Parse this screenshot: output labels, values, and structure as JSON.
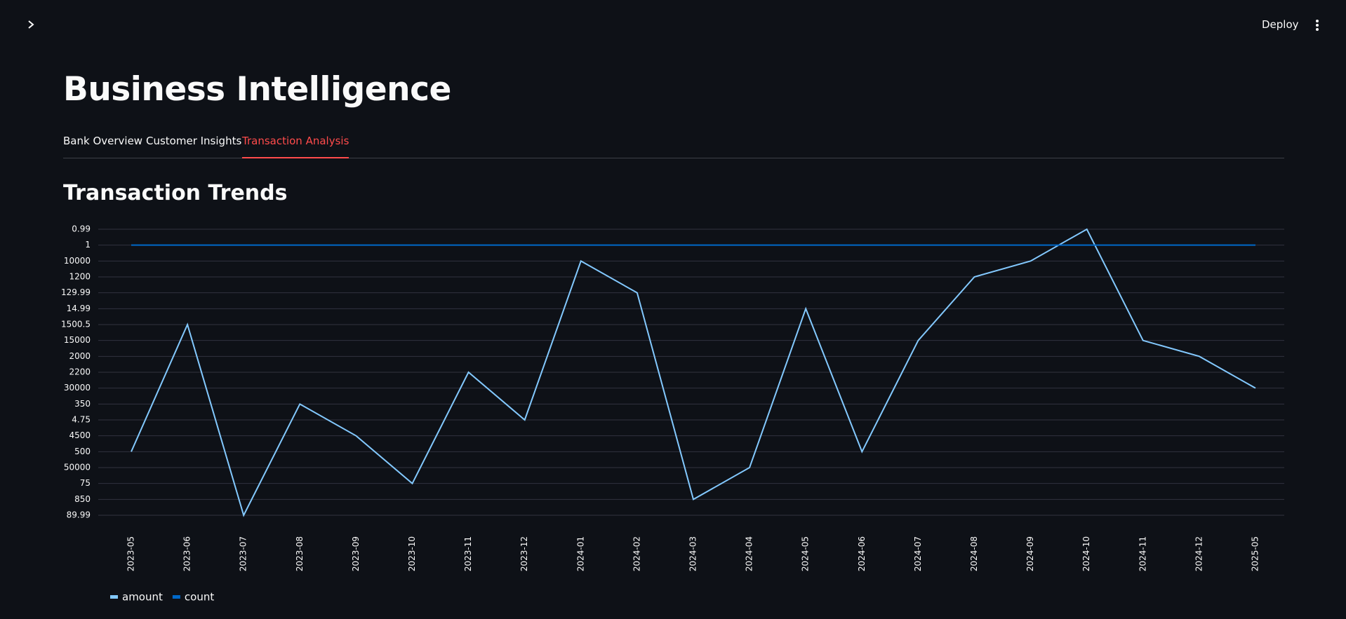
{
  "header": {
    "deploy": "Deploy"
  },
  "page": {
    "title": "Business Intelligence",
    "tabs": [
      "Bank Overview",
      "Customer Insights",
      "Transaction Analysis"
    ],
    "active_tab": 2,
    "section_title": "Transaction Trends"
  },
  "chart_data": {
    "type": "line",
    "categories": [
      "2023-05",
      "2023-06",
      "2023-07",
      "2023-08",
      "2023-09",
      "2023-10",
      "2023-11",
      "2023-12",
      "2024-01",
      "2024-02",
      "2024-03",
      "2024-04",
      "2024-05",
      "2024-06",
      "2024-07",
      "2024-08",
      "2024-09",
      "2024-10",
      "2024-11",
      "2024-12",
      "2025-05"
    ],
    "ycategories": [
      0.99,
      1,
      10000,
      1200,
      129.99,
      14.99,
      1500.5,
      15000,
      2000,
      2200,
      30000,
      350,
      4.75,
      4500,
      500,
      50000,
      75,
      850,
      89.99
    ],
    "grid": true,
    "legend": "bottom-left",
    "series": [
      {
        "name": "amount",
        "color": "#83c9ff",
        "values": [
          500,
          1500.5,
          89.99,
          350,
          4500,
          75,
          2200,
          4.75,
          10000,
          129.99,
          850,
          50000,
          14.99,
          500,
          15000,
          1200,
          10000,
          0.99,
          15000,
          2000,
          30000
        ]
      },
      {
        "name": "count",
        "color": "#0068c9",
        "values": [
          1,
          1,
          1,
          1,
          1,
          1,
          1,
          1,
          1,
          1,
          1,
          1,
          1,
          1,
          1,
          1,
          1,
          1,
          1,
          1,
          1
        ]
      }
    ]
  }
}
